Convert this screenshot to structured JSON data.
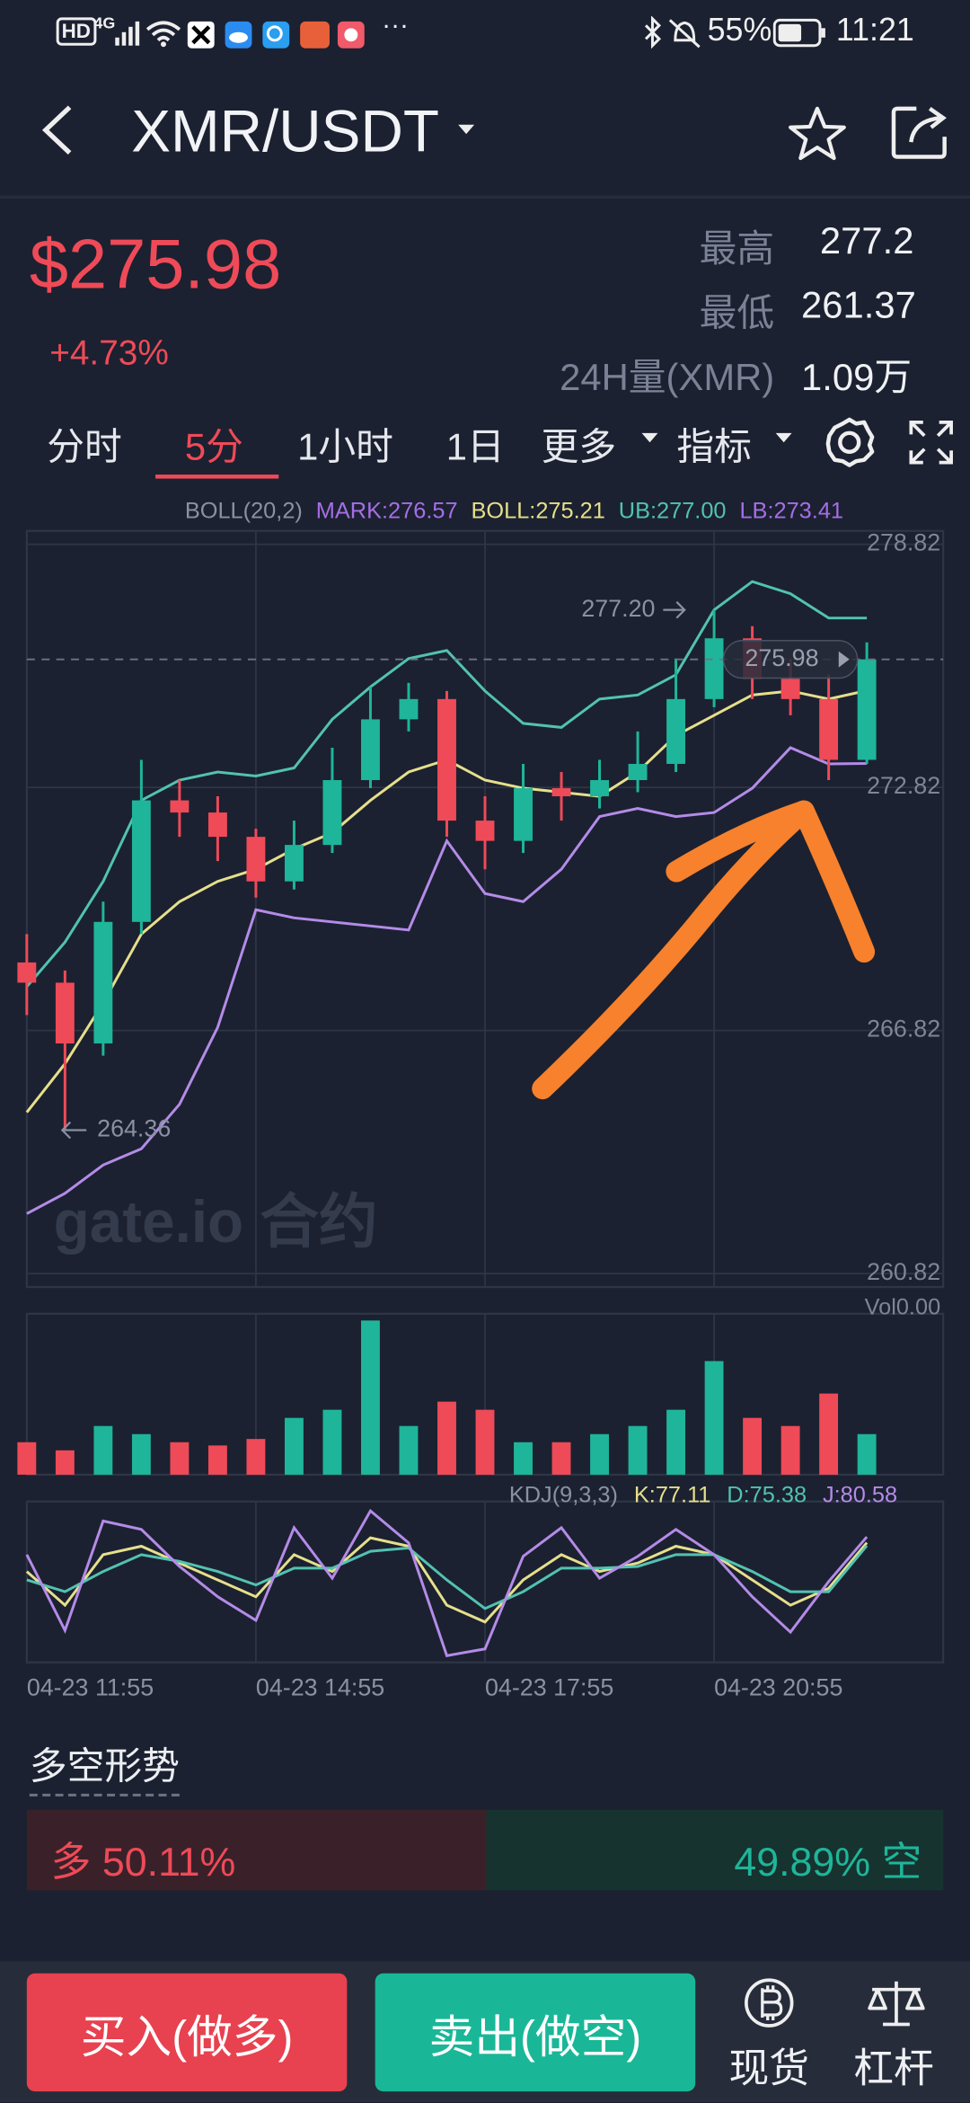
{
  "status_bar": {
    "left_icons": [
      "HD",
      "4G"
    ],
    "battery": "55%",
    "time": "11:21"
  },
  "header": {
    "title": "XMR/USDT"
  },
  "price": {
    "last": "$275.98",
    "change": "+4.73%"
  },
  "stats": [
    {
      "label": "最高",
      "value": "277.2"
    },
    {
      "label": "最低",
      "value": "261.37"
    },
    {
      "label": "24H量(XMR)",
      "value": "1.09万"
    }
  ],
  "tabs": {
    "items": [
      "分时",
      "5分",
      "1小时",
      "1日",
      "更多",
      "指标"
    ],
    "active": 1
  },
  "chart_data": {
    "type": "candlestick",
    "legend": [
      {
        "text": "BOLL(20,2)",
        "color": "#8a91a3"
      },
      {
        "text": "MARK:276.57",
        "color": "#a66ee6"
      },
      {
        "text": "BOLL:275.21",
        "color": "#e6df8c"
      },
      {
        "text": "UB:277.00",
        "color": "#52c2b2"
      },
      {
        "text": "LB:273.41",
        "color": "#a66ee6"
      }
    ],
    "categories": [
      "04-23 11:55",
      null,
      null,
      null,
      null,
      null,
      "04-23 14:55",
      null,
      null,
      null,
      null,
      null,
      "04-23 17:55",
      null,
      null,
      null,
      null,
      null,
      "04-23 20:55",
      null,
      null,
      null,
      null
    ],
    "open": [
      268.5,
      268.0,
      266.5,
      269.5,
      272.5,
      272.2,
      271.6,
      270.5,
      271.4,
      273.0,
      274.5,
      275.0,
      272.0,
      271.5,
      272.8,
      272.6,
      273.0,
      273.4,
      275.0,
      276.5,
      275.5,
      275.0,
      273.5
    ],
    "high": [
      269.2,
      268.3,
      270.0,
      273.5,
      273.0,
      272.6,
      271.8,
      272.0,
      273.8,
      275.3,
      275.4,
      275.2,
      272.6,
      273.4,
      273.2,
      273.5,
      274.2,
      276.0,
      277.2,
      276.8,
      276.0,
      275.6,
      276.4
    ],
    "low": [
      267.2,
      264.36,
      266.2,
      269.2,
      271.6,
      271.0,
      270.1,
      270.3,
      271.2,
      272.8,
      274.2,
      271.6,
      270.8,
      271.2,
      272.0,
      272.3,
      272.7,
      273.2,
      274.8,
      275.0,
      274.6,
      273.0,
      273.4
    ],
    "close": [
      268.0,
      266.5,
      269.5,
      272.5,
      272.2,
      271.6,
      270.5,
      271.4,
      273.0,
      274.5,
      275.0,
      272.0,
      271.5,
      272.8,
      272.6,
      273.0,
      273.4,
      275.0,
      276.5,
      275.5,
      275.0,
      273.5,
      275.98
    ],
    "up_color": "#1fb59a",
    "down_color": "#ef4a58",
    "series": [
      {
        "color": "#52c2b2",
        "values": [
          267.9,
          269.0,
          270.5,
          272.5,
          273.0,
          273.2,
          273.1,
          273.3,
          274.5,
          275.3,
          276.0,
          276.2,
          275.2,
          274.4,
          274.3,
          275.0,
          275.1,
          275.6,
          277.2,
          277.9,
          277.6,
          277.0,
          277.0
        ]
      },
      {
        "color": "#e6df8c",
        "values": [
          264.8,
          266.0,
          267.5,
          269.2,
          270.0,
          270.5,
          270.8,
          271.3,
          271.7,
          272.5,
          273.2,
          273.5,
          273.0,
          272.8,
          272.7,
          272.6,
          273.2,
          274.1,
          274.6,
          275.1,
          275.2,
          275.0,
          275.21
        ]
      },
      {
        "color": "#b48be8",
        "values": [
          262.3,
          262.8,
          263.5,
          263.9,
          265.0,
          266.9,
          269.8,
          269.6,
          269.5,
          269.4,
          269.3,
          271.5,
          270.2,
          270.0,
          270.8,
          272.1,
          272.3,
          272.1,
          272.2,
          272.8,
          273.8,
          273.4,
          273.41
        ]
      }
    ],
    "ylim": [
      260.82,
      278.82
    ],
    "yticks": [
      278.82,
      272.82,
      266.82,
      260.82
    ],
    "grid": true,
    "annotations": {
      "high": {
        "value": 277.2,
        "label": "277.20"
      },
      "low": {
        "value": 264.36,
        "label": "264.36"
      },
      "last": {
        "value": 275.98,
        "label": "275.98"
      }
    },
    "watermark": "gate.io 合约",
    "volume": {
      "label": "Vol0.00",
      "values": [
        20,
        15,
        30,
        25,
        20,
        18,
        22,
        35,
        40,
        95,
        30,
        45,
        40,
        20,
        20,
        25,
        30,
        40,
        70,
        35,
        30,
        50,
        25
      ]
    },
    "kdj": {
      "legend": [
        {
          "text": "KDJ(9,3,3)",
          "color": "#8a91a3"
        },
        {
          "text": "K:77.11",
          "color": "#e6df8c"
        },
        {
          "text": "D:75.38",
          "color": "#52c2b2"
        },
        {
          "text": "J:80.58",
          "color": "#b48be8"
        }
      ],
      "series": [
        {
          "color": "#e6df8c",
          "values": [
            60,
            40,
            70,
            75,
            65,
            55,
            45,
            70,
            60,
            80,
            75,
            40,
            30,
            55,
            70,
            60,
            65,
            75,
            70,
            55,
            40,
            50,
            77.11
          ]
        },
        {
          "color": "#52c2b2",
          "values": [
            55,
            48,
            60,
            70,
            66,
            60,
            52,
            62,
            62,
            72,
            74,
            55,
            38,
            48,
            62,
            62,
            63,
            70,
            70,
            60,
            48,
            48,
            75.38
          ]
        },
        {
          "color": "#b48be8",
          "values": [
            70,
            25,
            90,
            85,
            63,
            45,
            31,
            86,
            56,
            96,
            77,
            10,
            14,
            69,
            86,
            56,
            69,
            85,
            70,
            45,
            24,
            54,
            80.58
          ]
        }
      ]
    }
  },
  "sentiment": {
    "title": "多空形势",
    "long": {
      "label": "多",
      "value": 50.11,
      "value_label": "50.11%",
      "color": "#3a2129"
    },
    "short": {
      "label": "空",
      "value": 49.89,
      "value_label": "49.89%",
      "color": "#16332f"
    }
  },
  "actions": {
    "buy": "买入(做多)",
    "sell": "卖出(做空)",
    "spot": "现货",
    "margin": "杠杆"
  }
}
